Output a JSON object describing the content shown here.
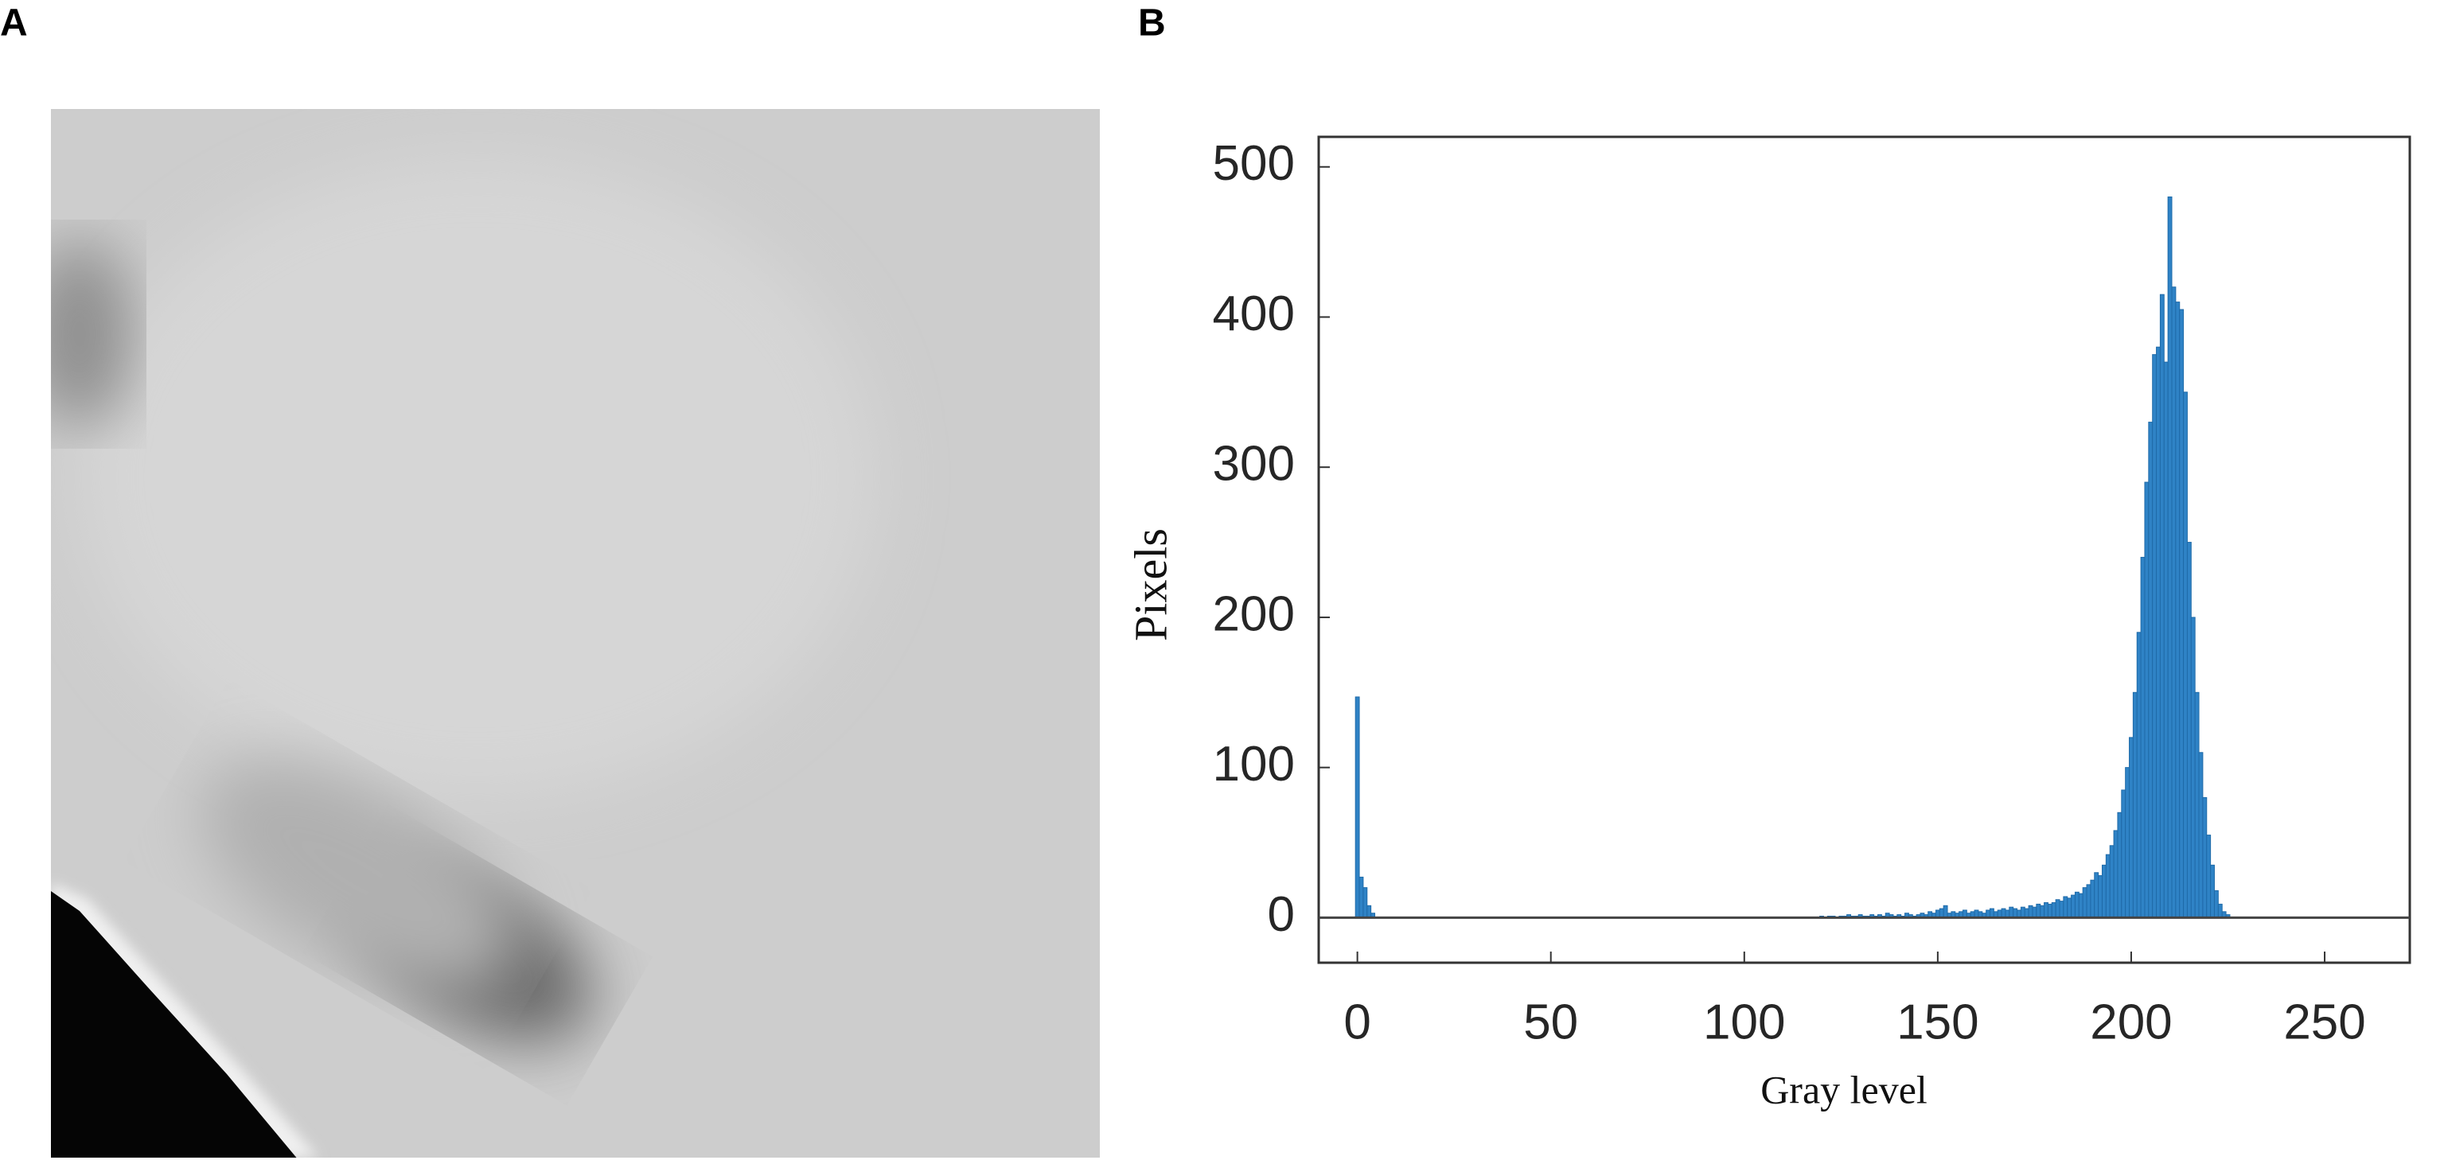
{
  "panel_labels": [
    "A",
    "B"
  ],
  "chart_data": {
    "type": "histogram",
    "xlabel": "Gray level",
    "ylabel": "Pixels",
    "color": "#2f83c6",
    "edge_color": "#1f6aa8",
    "x": [
      0,
      1,
      2,
      3,
      4,
      120,
      121,
      122,
      123,
      124,
      125,
      126,
      127,
      128,
      129,
      130,
      131,
      132,
      133,
      134,
      135,
      136,
      137,
      138,
      139,
      140,
      141,
      142,
      143,
      144,
      145,
      146,
      147,
      148,
      149,
      150,
      151,
      152,
      153,
      154,
      155,
      156,
      157,
      158,
      159,
      160,
      161,
      162,
      163,
      164,
      165,
      166,
      167,
      168,
      169,
      170,
      171,
      172,
      173,
      174,
      175,
      176,
      177,
      178,
      179,
      180,
      181,
      182,
      183,
      184,
      185,
      186,
      187,
      188,
      189,
      190,
      191,
      192,
      193,
      194,
      195,
      196,
      197,
      198,
      199,
      200,
      201,
      202,
      203,
      204,
      205,
      206,
      207,
      208,
      209,
      210,
      211,
      212,
      213,
      214,
      215,
      216,
      217,
      218,
      219,
      220,
      221,
      222,
      223,
      224,
      225
    ],
    "values": [
      147,
      27,
      20,
      8,
      3,
      1,
      0,
      1,
      1,
      0,
      1,
      1,
      2,
      1,
      1,
      2,
      1,
      1,
      2,
      1,
      2,
      1,
      3,
      2,
      1,
      2,
      1,
      3,
      2,
      1,
      2,
      3,
      2,
      4,
      3,
      5,
      6,
      8,
      3,
      4,
      3,
      4,
      5,
      3,
      4,
      5,
      4,
      3,
      5,
      6,
      4,
      5,
      6,
      5,
      7,
      6,
      5,
      7,
      6,
      8,
      7,
      9,
      8,
      10,
      9,
      10,
      12,
      11,
      14,
      13,
      15,
      17,
      16,
      20,
      22,
      25,
      30,
      28,
      35,
      42,
      48,
      58,
      70,
      85,
      100,
      120,
      150,
      190,
      240,
      290,
      330,
      375,
      380,
      415,
      370,
      480,
      420,
      410,
      405,
      350,
      250,
      200,
      150,
      110,
      80,
      55,
      35,
      18,
      9,
      4,
      2
    ],
    "xlim": [
      -10,
      272
    ],
    "ylim": [
      -30,
      520
    ],
    "xticks": [
      0,
      50,
      100,
      150,
      200,
      250
    ],
    "yticks": [
      0,
      100,
      200,
      300,
      400,
      500
    ],
    "grid": false
  }
}
